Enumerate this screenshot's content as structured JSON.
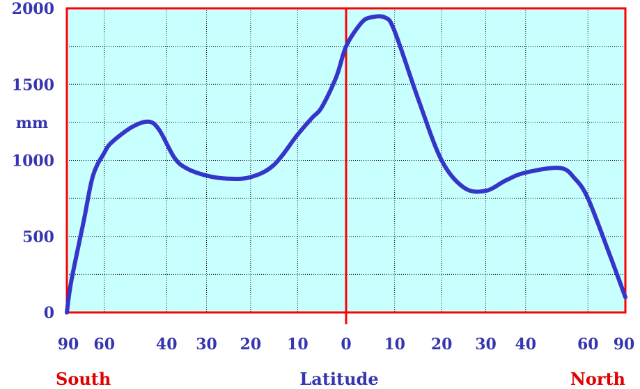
{
  "colors": {
    "background": "#ffffff",
    "plot_fill": "#c8ffff",
    "frame": "#ff0000",
    "grid": "#000000",
    "curve": "#3535c8",
    "text_blue": "#3535b0",
    "text_red": "#e00000"
  },
  "labels": {
    "unit": "mm",
    "south": "South",
    "latitude": "Latitude",
    "north": "North"
  },
  "chart_data": {
    "type": "line",
    "title": "",
    "xlabel": "Latitude",
    "ylabel": "mm",
    "xlim": [
      -90,
      90
    ],
    "ylim": [
      0,
      2000
    ],
    "y_ticks": [
      0,
      500,
      1000,
      1500,
      2000
    ],
    "x_tick_labels": [
      "90",
      "60",
      "40",
      "30",
      "20",
      "10",
      "0",
      "10",
      "20",
      "30",
      "40",
      "60",
      "90"
    ],
    "x_tick_positions": [
      -90,
      -60,
      -40,
      -30,
      -20,
      -10,
      0,
      10,
      20,
      30,
      40,
      60,
      90
    ],
    "grid": true,
    "x_scale": "sine of latitude (equal-area)",
    "series": [
      {
        "x": [
          -90,
          -80,
          -70,
          -65,
          -60,
          -57,
          -50,
          -45,
          -42,
          -38,
          -35,
          -30,
          -25,
          -20,
          -15,
          -10,
          -7,
          -5,
          -2,
          0,
          3,
          5,
          8,
          10,
          15,
          20,
          25,
          30,
          35,
          40,
          50,
          55,
          60,
          70,
          90
        ],
        "y": [
          0,
          200,
          600,
          900,
          1050,
          1120,
          1220,
          1255,
          1200,
          1020,
          950,
          900,
          880,
          890,
          970,
          1170,
          1280,
          1350,
          1550,
          1750,
          1900,
          1940,
          1940,
          1850,
          1400,
          1000,
          820,
          800,
          870,
          920,
          950,
          880,
          750,
          400,
          100
        ]
      }
    ]
  }
}
